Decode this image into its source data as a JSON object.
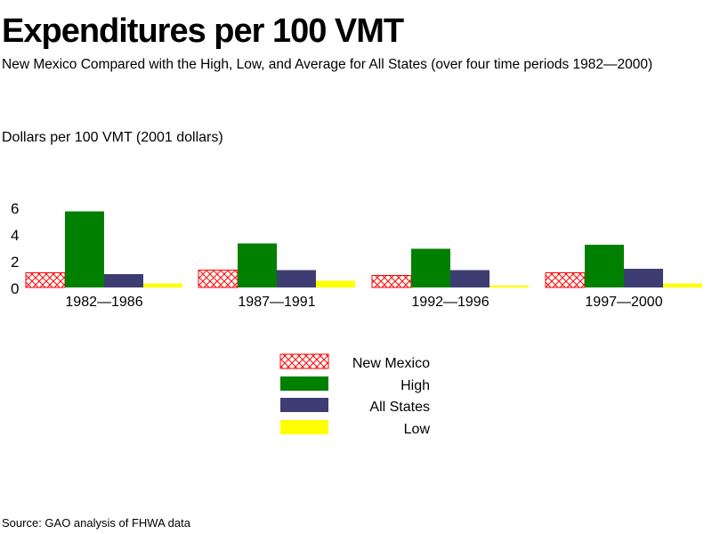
{
  "chart_data": {
    "type": "bar",
    "title": "Expenditures per 100 VMT",
    "subtitle": "New Mexico Compared with the High, Low, and Average for All States (over four time periods 1982—2000)",
    "ylabel": "Dollars per 100 VMT  (2001 dollars)",
    "source": "Source: GAO analysis of FHWA data",
    "categories": [
      "1982—1986",
      "1987—1991",
      "1992—1996",
      "1997—2000"
    ],
    "yticks": [
      "0",
      "2",
      "4",
      "6"
    ],
    "ylim": [
      0,
      6
    ],
    "grid": false,
    "legend_placement": "bottom-center",
    "series": [
      {
        "name": "New Mexico",
        "values": [
          1.1,
          1.3,
          0.9,
          1.1
        ],
        "color": "#ff0000",
        "pattern": "crosshatch"
      },
      {
        "name": "High",
        "values": [
          5.7,
          3.3,
          2.9,
          3.2
        ],
        "color": "#008000"
      },
      {
        "name": "All States",
        "values": [
          1.0,
          1.3,
          1.3,
          1.4
        ],
        "color": "#3d3d73"
      },
      {
        "name": "Low",
        "values": [
          0.3,
          0.5,
          0.15,
          0.3
        ],
        "color": "#ffff00"
      }
    ]
  }
}
